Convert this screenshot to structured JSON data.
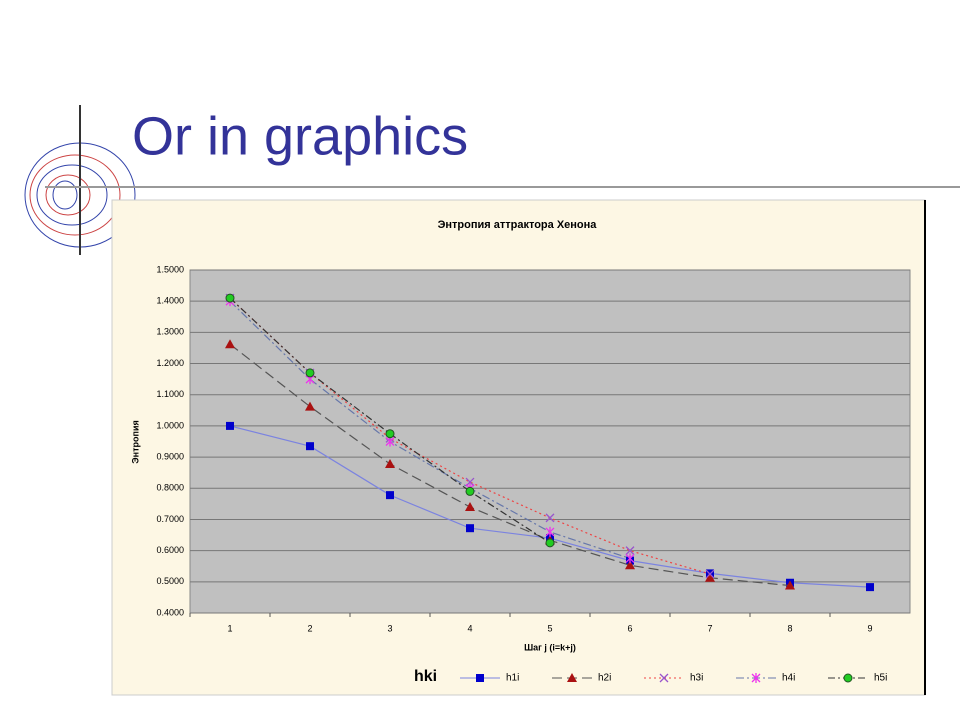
{
  "slide": {
    "title": "Or in graphics"
  },
  "chart_data": {
    "type": "line",
    "title": "Энтропия аттрактора Хенона",
    "x_label": "Шаг j (i=k+j)",
    "y_label": "Энтропия",
    "legend_title": "hki",
    "categories": [
      "1",
      "2",
      "3",
      "4",
      "5",
      "6",
      "7",
      "8",
      "9"
    ],
    "ylim": [
      0.4,
      1.5
    ],
    "yticks": [
      {
        "value": 0.4,
        "label": "0.4000"
      },
      {
        "value": 0.5,
        "label": "0.5000"
      },
      {
        "value": 0.6,
        "label": "0.6000"
      },
      {
        "value": 0.7,
        "label": "0.7000"
      },
      {
        "value": 0.8,
        "label": "0.8000"
      },
      {
        "value": 0.9,
        "label": "0.9000"
      },
      {
        "value": 1.0,
        "label": "1.0000"
      },
      {
        "value": 1.1,
        "label": "1.1000"
      },
      {
        "value": 1.2,
        "label": "1.2000"
      },
      {
        "value": 1.3,
        "label": "1.3000"
      },
      {
        "value": 1.4,
        "label": "1.4000"
      },
      {
        "value": 1.5,
        "label": "1.5000"
      }
    ],
    "grid": true,
    "legend": "bottom",
    "series": [
      {
        "name": "h1i",
        "color": "#0000cc",
        "line_color": "#7b83e0",
        "marker": "square",
        "dash": "none",
        "values": [
          1.0,
          0.935,
          0.778,
          0.672,
          0.64,
          0.568,
          0.527,
          0.497,
          0.483
        ]
      },
      {
        "name": "h2i",
        "color": "#aa1111",
        "line_color": "#555555",
        "marker": "triangle",
        "dash": "10 5",
        "values": [
          1.262,
          1.062,
          0.878,
          0.74,
          0.633,
          0.553,
          0.513,
          0.488,
          null
        ]
      },
      {
        "name": "h3i",
        "color": "#9955cc",
        "line_color": "#ee4444",
        "marker": "x",
        "dash": "2 3",
        "values": [
          1.41,
          1.17,
          0.96,
          0.82,
          0.705,
          0.6,
          0.525,
          null,
          null
        ]
      },
      {
        "name": "h4i",
        "color": "#ee33ee",
        "line_color": "#6677aa",
        "marker": "star",
        "dash": "8 3 2 3",
        "values": [
          1.4,
          1.15,
          0.95,
          0.8,
          0.66,
          0.575,
          null,
          null,
          null
        ]
      },
      {
        "name": "h5i",
        "color": "#22cc22",
        "line_color": "#333333",
        "marker": "circle",
        "dash": "7 3 2 3",
        "values": [
          1.41,
          1.17,
          0.975,
          0.79,
          0.625,
          null,
          null,
          null,
          null
        ]
      }
    ]
  }
}
